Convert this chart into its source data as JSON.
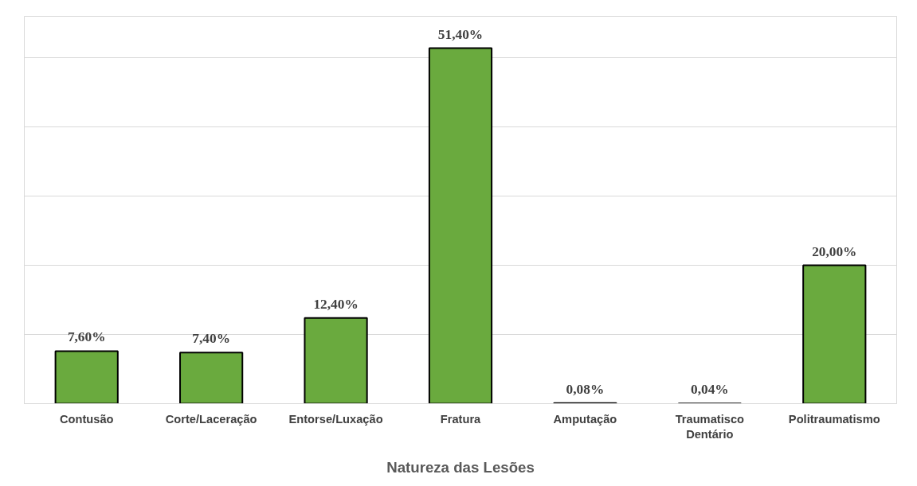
{
  "chart_data": {
    "type": "bar",
    "xlabel": "Natureza das Lesões",
    "categories": [
      "Contusão",
      "Corte/Laceração",
      "Entorse/Luxação",
      "Fratura",
      "Amputação",
      "Traumatisco Dentário",
      "Politraumatismo"
    ],
    "values": [
      7.6,
      7.4,
      12.4,
      51.4,
      0.08,
      0.04,
      20.0
    ],
    "value_labels": [
      "7,60%",
      "7,40%",
      "12,40%",
      "51,40%",
      "0,08%",
      "0,04%",
      "20,00%"
    ],
    "color": "#6aaa3e",
    "ylim": [
      0,
      56
    ],
    "yticks": [
      {
        "value": 0,
        "label": null
      },
      {
        "value": 10,
        "label": null
      },
      {
        "value": 20,
        "label": null
      },
      {
        "value": 30,
        "label": null
      },
      {
        "value": 40,
        "label": null
      },
      {
        "value": 50,
        "label": null
      }
    ],
    "grid": "y",
    "tick_labels": "x"
  }
}
